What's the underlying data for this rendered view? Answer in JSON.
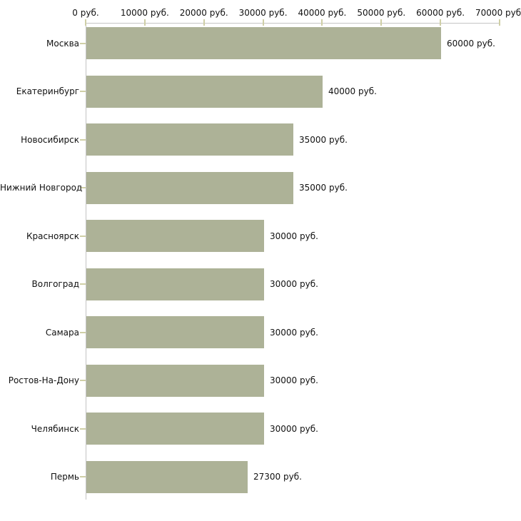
{
  "chart_data": {
    "type": "bar",
    "orientation": "horizontal",
    "title": "",
    "xlabel": "",
    "ylabel": "",
    "categories": [
      "Москва",
      "Екатеринбург",
      "Новосибирск",
      "Нижний Новгород",
      "Красноярск",
      "Волгоград",
      "Самара",
      "Ростов-На-Дону",
      "Челябинск",
      "Пермь"
    ],
    "values": [
      60000,
      40000,
      35000,
      35000,
      30000,
      30000,
      30000,
      30000,
      30000,
      27300
    ],
    "value_labels": [
      "60000 руб.",
      "40000 руб.",
      "35000 руб.",
      "35000 руб.",
      "30000 руб.",
      "30000 руб.",
      "30000 руб.",
      "30000 руб.",
      "30000 руб.",
      "27300 руб."
    ],
    "x_axis": {
      "position": "top",
      "min": 0,
      "max": 70000,
      "ticks": [
        0,
        10000,
        20000,
        30000,
        40000,
        50000,
        60000,
        70000
      ],
      "tick_labels": [
        "0 руб.",
        "10000 руб.",
        "20000 руб.",
        "30000 руб.",
        "40000 руб.",
        "50000 руб.",
        "60000 руб.",
        "70000 руб."
      ]
    },
    "grid": false,
    "legend": false,
    "colors": {
      "bar": "#adb297",
      "axis_line": "#c4c4c4",
      "tick_mark": "#cfcfa6",
      "text": "#111111",
      "background": "#ffffff"
    }
  }
}
